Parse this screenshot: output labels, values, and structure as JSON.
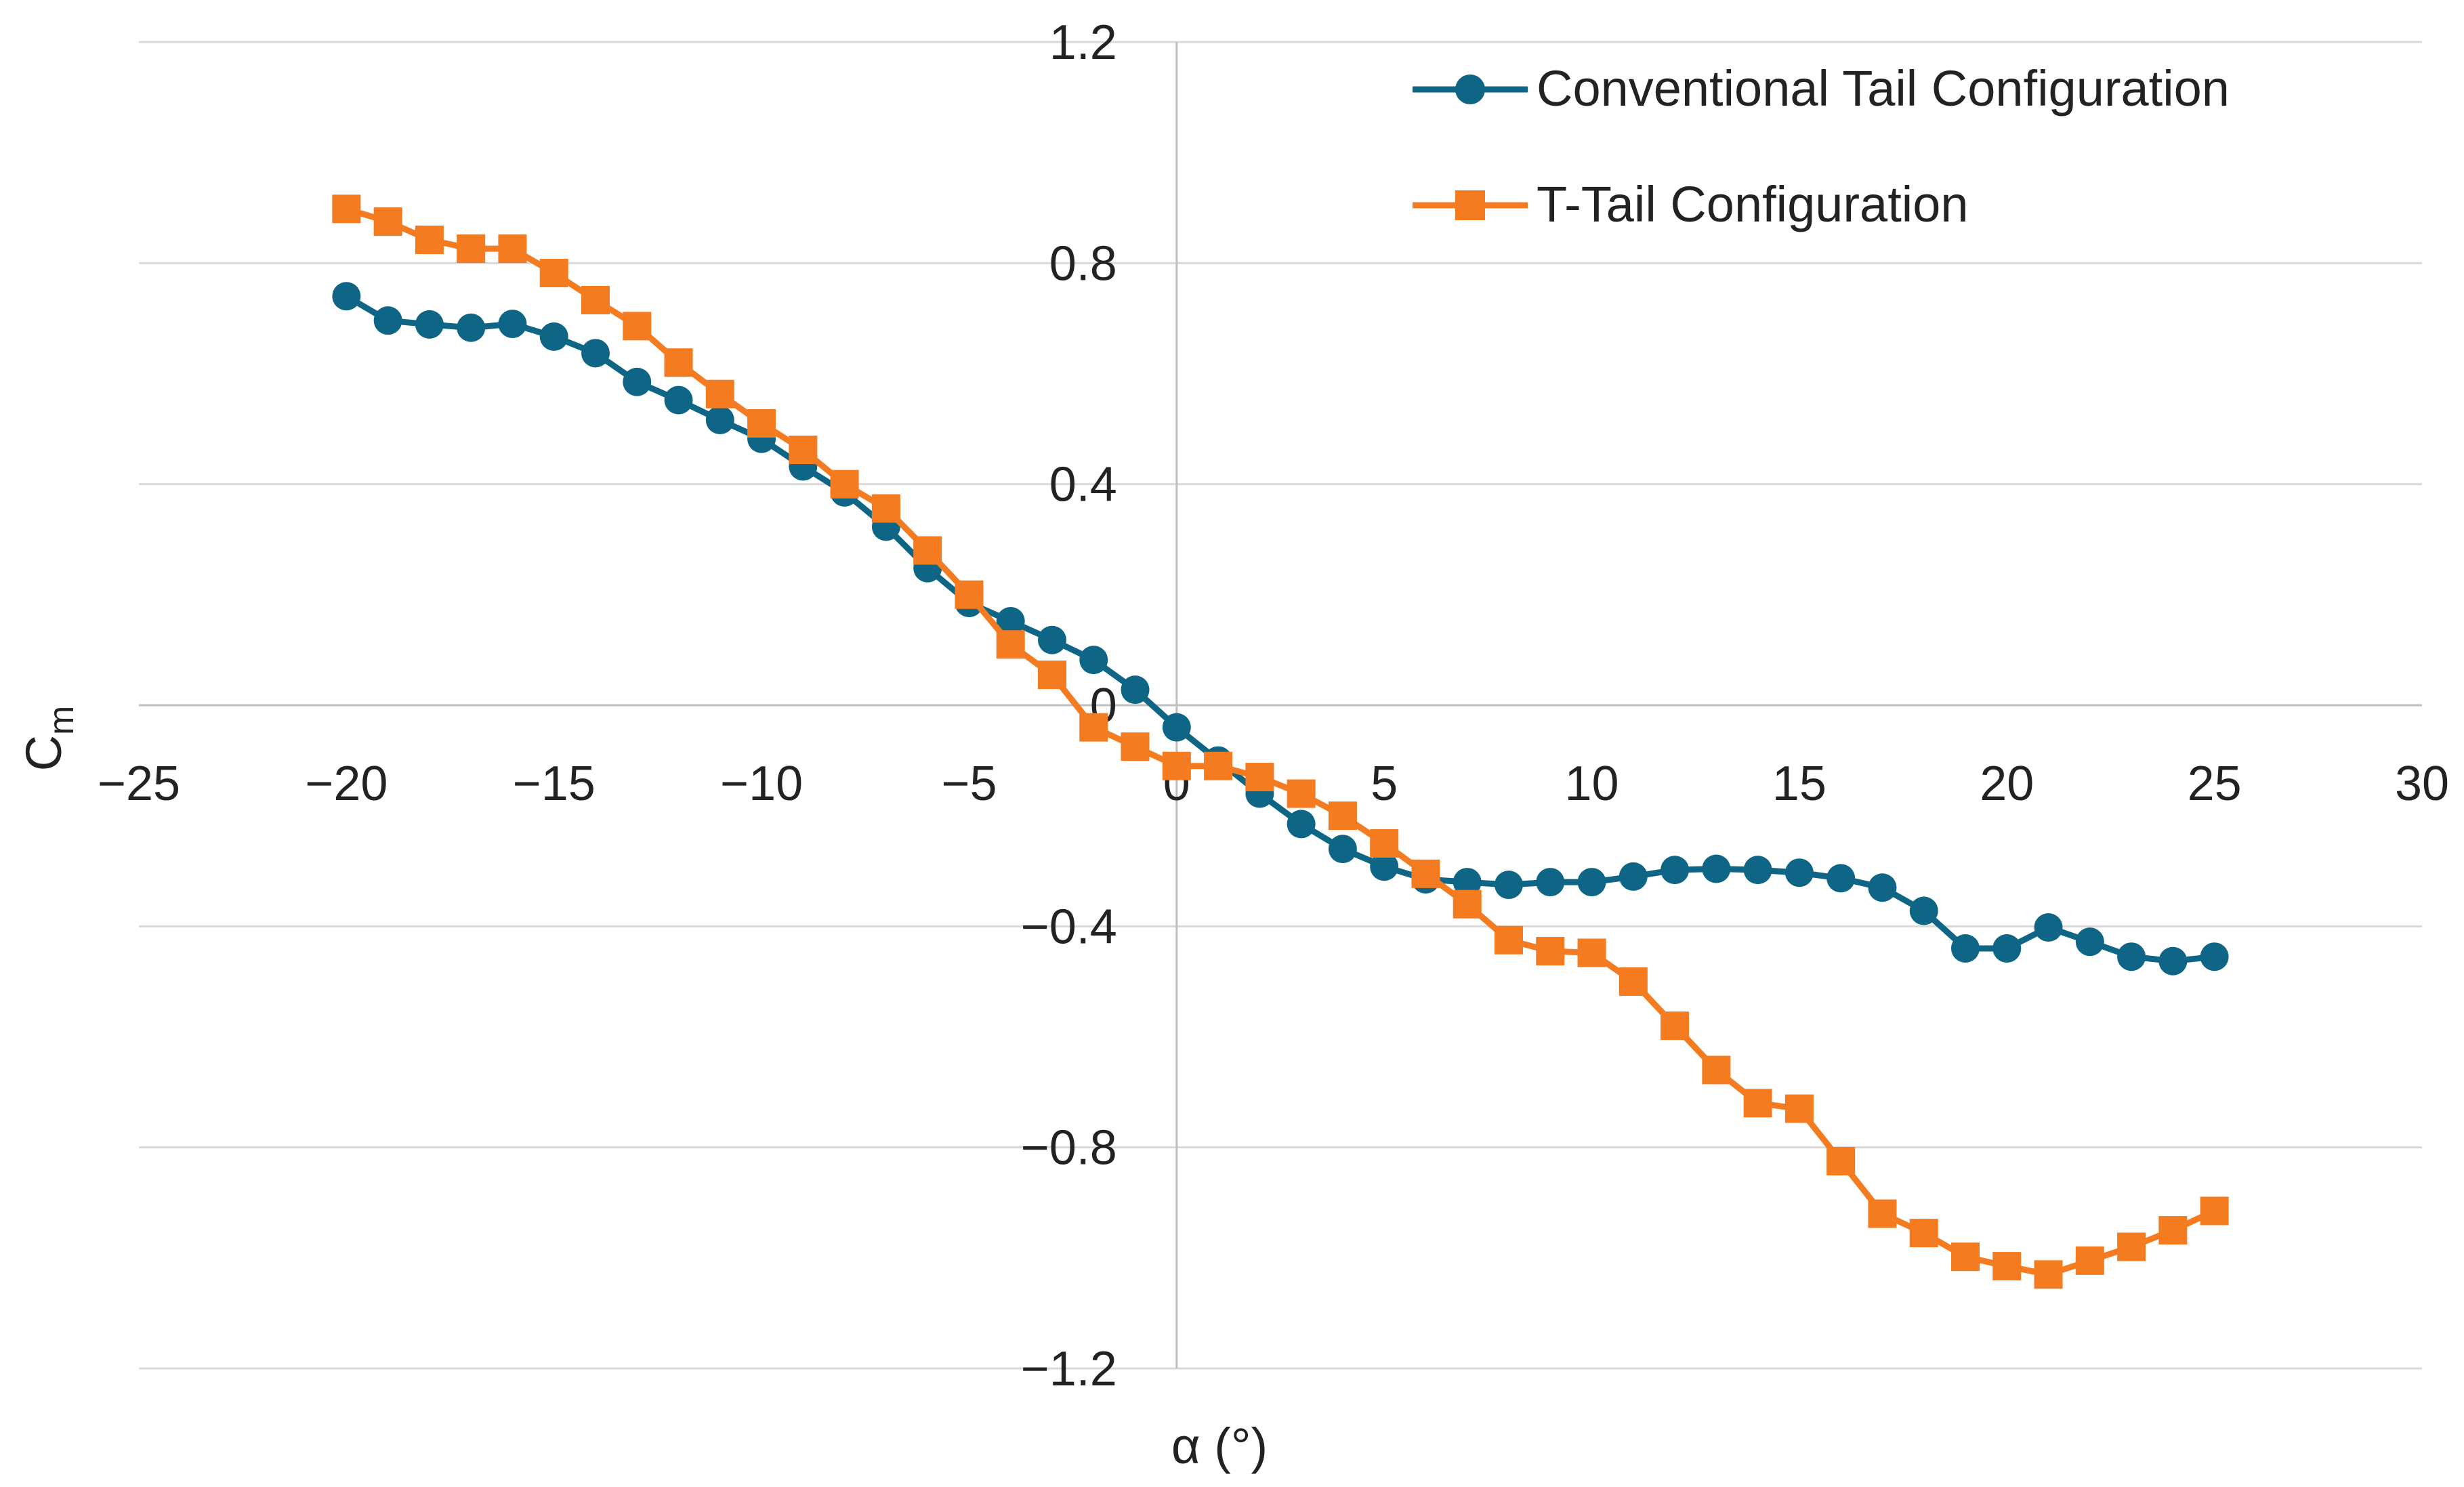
{
  "chart_data": {
    "type": "line",
    "title": "",
    "xlabel": "α (°)",
    "ylabel": "C",
    "ylabel_sub": "m",
    "xlim": [
      -25,
      30
    ],
    "ylim": [
      -1.2,
      1.2
    ],
    "x_ticks": [
      "−25",
      "−20",
      "−15",
      "−10",
      "−5",
      "0",
      "5",
      "10",
      "15",
      "20",
      "25",
      "30"
    ],
    "x_tick_values": [
      -25,
      -20,
      -15,
      -10,
      -5,
      0,
      5,
      10,
      15,
      20,
      25,
      30
    ],
    "y_ticks": [
      "1.2",
      "0.8",
      "0.4",
      "0",
      "−0.4",
      "−0.8",
      "−1.2"
    ],
    "y_tick_values": [
      1.2,
      0.8,
      0.4,
      0,
      -0.4,
      -0.8,
      -1.2
    ],
    "grid": "horizontal",
    "legend_position": "top-right",
    "x": [
      -20,
      -19,
      -18,
      -17,
      -16,
      -15,
      -14,
      -13,
      -12,
      -11,
      -10,
      -9,
      -8,
      -7,
      -6,
      -5,
      -4,
      -3,
      -2,
      -1,
      0,
      1,
      2,
      3,
      4,
      5,
      6,
      7,
      8,
      9,
      10,
      11,
      12,
      13,
      14,
      15,
      16,
      17,
      18,
      19,
      20,
      21,
      22,
      23,
      24,
      25
    ],
    "series": [
      {
        "name": "Conventional Tail Configuration",
        "color": "#0e6585",
        "marker": "circle",
        "values": [
          0.74,
          0.696,
          0.689,
          0.683,
          0.69,
          0.667,
          0.637,
          0.585,
          0.552,
          0.516,
          0.482,
          0.432,
          0.385,
          0.323,
          0.248,
          0.185,
          0.152,
          0.118,
          0.082,
          0.028,
          -0.04,
          -0.1,
          -0.16,
          -0.215,
          -0.26,
          -0.292,
          -0.315,
          -0.32,
          -0.325,
          -0.32,
          -0.32,
          -0.31,
          -0.298,
          -0.296,
          -0.298,
          -0.303,
          -0.313,
          -0.33,
          -0.372,
          -0.44,
          -0.44,
          -0.402,
          -0.428,
          -0.455,
          -0.463,
          -0.455
        ]
      },
      {
        "name": "T-Tail Configuration",
        "color": "#f47b20",
        "marker": "square",
        "values": [
          0.898,
          0.875,
          0.842,
          0.826,
          0.826,
          0.782,
          0.733,
          0.686,
          0.62,
          0.563,
          0.51,
          0.462,
          0.4,
          0.356,
          0.28,
          0.2,
          0.11,
          0.055,
          -0.04,
          -0.075,
          -0.11,
          -0.11,
          -0.13,
          -0.16,
          -0.2,
          -0.25,
          -0.305,
          -0.36,
          -0.425,
          -0.445,
          -0.448,
          -0.5,
          -0.58,
          -0.66,
          -0.72,
          -0.73,
          -0.825,
          -0.92,
          -0.955,
          -0.998,
          -1.015,
          -1.03,
          -1.005,
          -0.98,
          -0.95,
          -0.915
        ]
      }
    ]
  }
}
